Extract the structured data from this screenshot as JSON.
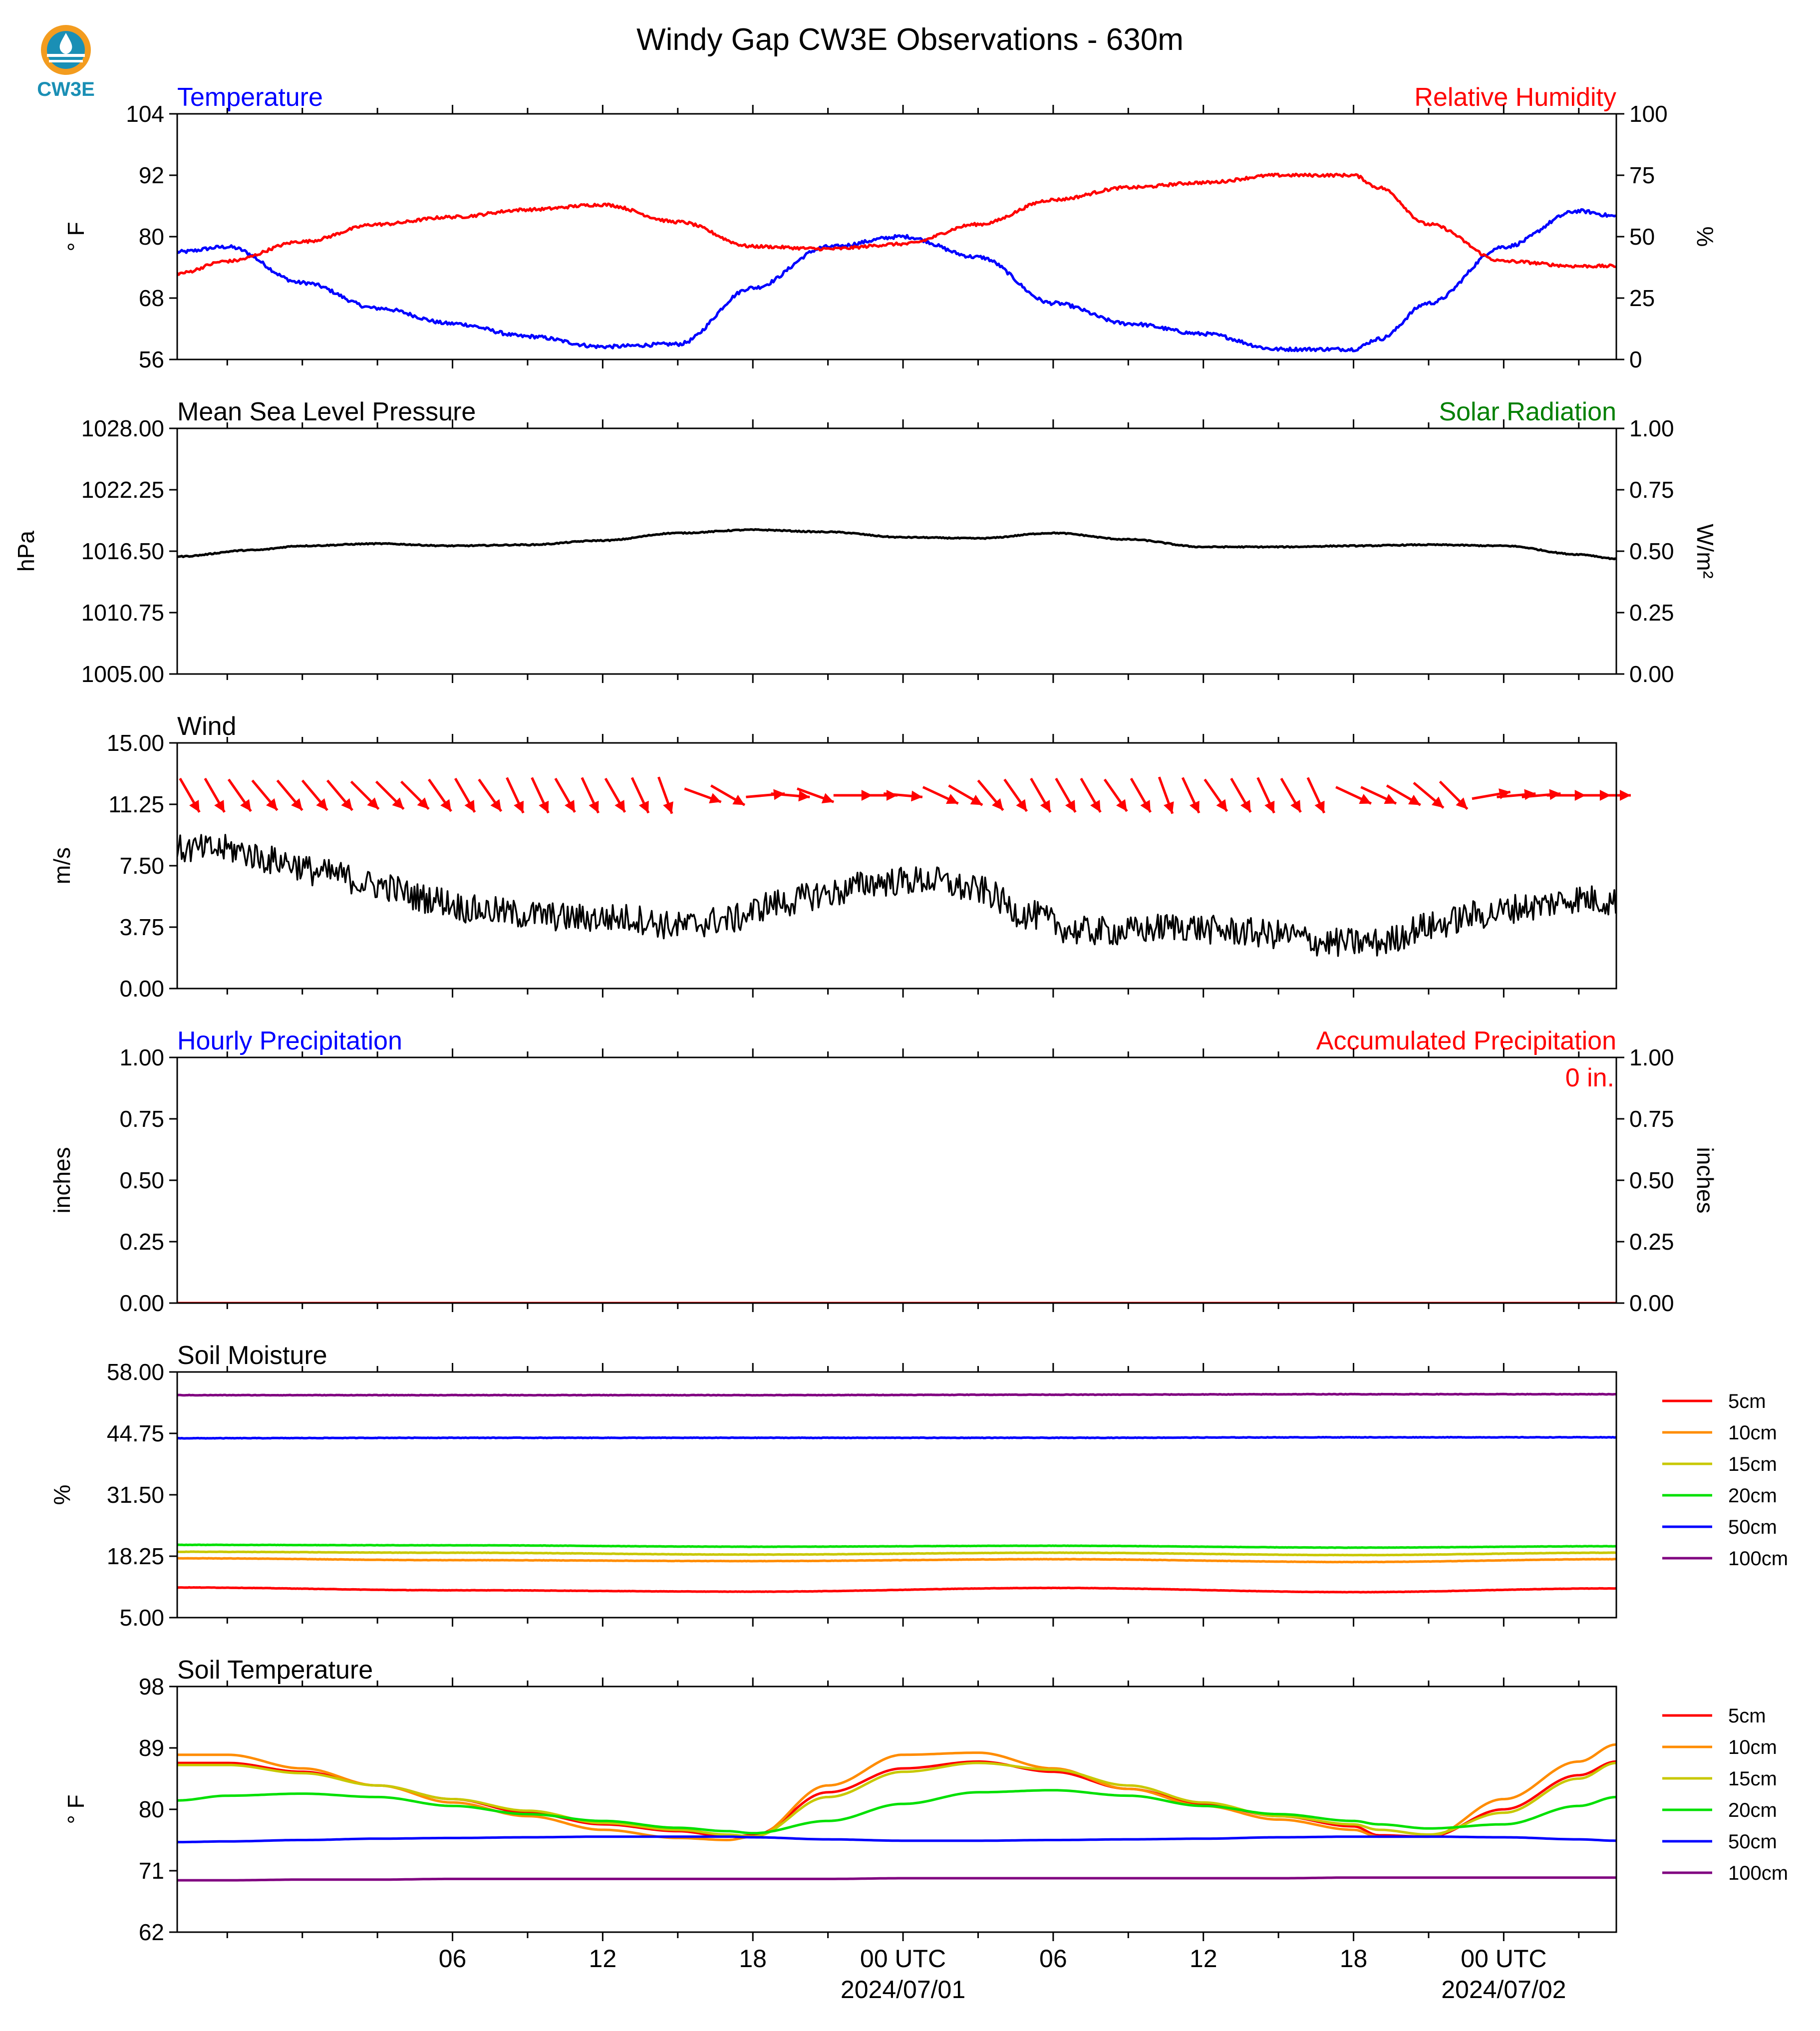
{
  "page": {
    "title": "Windy Gap CW3E Observations - 630m",
    "logo_text": "CW3E",
    "x_tick_labels": [
      "06",
      "12",
      "18",
      "00 UTC",
      "06",
      "12",
      "18",
      "00 UTC"
    ],
    "x_date_labels": [
      "2024/07/01",
      "2024/07/02"
    ],
    "colors": {
      "red": "#ff0000",
      "blue": "#0000ff",
      "green": "#008000",
      "black": "#000000",
      "logo_orange": "#f39c1f",
      "logo_teal": "#1a8fb5"
    }
  },
  "chart_data": [
    {
      "id": "temp_rh",
      "type": "line",
      "title_left": "Temperature",
      "title_right": "Relative Humidity",
      "ylabel_left": "° F",
      "ylabel_right": "%",
      "ylim_left": [
        56,
        104
      ],
      "ylim_right": [
        0,
        100
      ],
      "yticks_left": [
        "104",
        "92",
        "80",
        "68",
        "56"
      ],
      "yticks_right": [
        "100",
        "75",
        "50",
        "25",
        "0"
      ],
      "x_hours": [
        -5,
        -3,
        0,
        3,
        6,
        9,
        12,
        15,
        18,
        21,
        24,
        27,
        30,
        33,
        36,
        39,
        42,
        43,
        45,
        48,
        51,
        52.5
      ],
      "series": [
        {
          "axis": "left",
          "color": "#0000ff",
          "values": [
            77,
            78,
            71,
            66,
            63,
            60.5,
            58.5,
            59,
            70,
            78,
            80,
            76,
            67,
            63,
            61,
            58,
            58,
            60,
            67,
            78,
            85,
            84
          ]
        },
        {
          "axis": "right",
          "color": "#ff0000",
          "values": [
            35,
            40,
            48,
            55,
            58,
            61,
            63,
            56,
            46,
            45,
            47,
            55,
            65,
            70,
            72,
            75,
            75,
            70,
            55,
            40,
            38,
            38
          ]
        }
      ]
    },
    {
      "id": "pressure",
      "type": "line",
      "title_left": "Mean Sea Level Pressure",
      "title_right": "Solar Radiation",
      "ylabel_left": "hPa",
      "ylabel_right": "W/m²",
      "ylim_left": [
        1005.0,
        1028.0
      ],
      "ylim_right": [
        0.0,
        1.0
      ],
      "yticks_left": [
        "1028.00",
        "1022.25",
        "1016.50",
        "1010.75",
        "1005.00"
      ],
      "yticks_right": [
        "1.00",
        "0.75",
        "0.50",
        "0.25",
        "0.00"
      ],
      "x_hours": [
        -5,
        -2,
        0,
        3,
        6,
        9,
        12,
        15,
        18,
        21,
        24,
        27,
        30,
        33,
        36,
        39,
        42,
        45,
        48,
        51,
        52.5
      ],
      "series": [
        {
          "axis": "left",
          "color": "#000000",
          "values": [
            1016.0,
            1016.6,
            1017.0,
            1017.2,
            1017.0,
            1017.1,
            1017.5,
            1018.2,
            1018.5,
            1018.3,
            1017.8,
            1017.7,
            1018.2,
            1017.6,
            1016.9,
            1016.9,
            1017.0,
            1017.1,
            1017.0,
            1016.2,
            1015.8
          ]
        }
      ]
    },
    {
      "id": "wind",
      "type": "line",
      "title_left": "Wind",
      "ylabel_left": "m/s",
      "ylim_left": [
        0.0,
        15.0
      ],
      "yticks_left": [
        "15.00",
        "11.25",
        "7.50",
        "3.75",
        "0.00"
      ],
      "x_hours": [
        -5,
        -3,
        -1,
        1,
        3,
        5,
        7,
        9,
        11,
        13,
        15,
        17,
        19,
        21,
        23,
        25,
        27,
        29,
        31,
        33,
        35,
        37,
        39,
        41,
        43,
        45,
        47,
        49,
        51,
        52.5
      ],
      "series": [
        {
          "axis": "left",
          "color": "#000000",
          "values": [
            8.5,
            8.5,
            7.8,
            7.0,
            6.3,
            5.5,
            4.8,
            4.5,
            4.3,
            4.3,
            3.8,
            4.2,
            5.2,
            5.8,
            6.5,
            6.6,
            6.0,
            4.5,
            3.5,
            3.5,
            3.8,
            3.5,
            3.3,
            2.8,
            2.8,
            3.8,
            4.5,
            5.0,
            5.5,
            5.3
          ]
        }
      ],
      "barbs": {
        "color": "#ff0000",
        "y_value": 11.8,
        "items": [
          {
            "hour": -4.5,
            "dir": 330
          },
          {
            "hour": -3.5,
            "dir": 330
          },
          {
            "hour": -2.5,
            "dir": 325
          },
          {
            "hour": -1.5,
            "dir": 320
          },
          {
            "hour": -0.5,
            "dir": 320
          },
          {
            "hour": 0.5,
            "dir": 320
          },
          {
            "hour": 1.5,
            "dir": 320
          },
          {
            "hour": 2.5,
            "dir": 315
          },
          {
            "hour": 3.5,
            "dir": 315
          },
          {
            "hour": 4.5,
            "dir": 315
          },
          {
            "hour": 5.5,
            "dir": 325
          },
          {
            "hour": 6.5,
            "dir": 330
          },
          {
            "hour": 7.5,
            "dir": 325
          },
          {
            "hour": 8.5,
            "dir": 335
          },
          {
            "hour": 9.5,
            "dir": 335
          },
          {
            "hour": 10.5,
            "dir": 330
          },
          {
            "hour": 11.5,
            "dir": 335
          },
          {
            "hour": 12.5,
            "dir": 330
          },
          {
            "hour": 13.5,
            "dir": 335
          },
          {
            "hour": 14.5,
            "dir": 340
          },
          {
            "hour": 16.0,
            "dir": 290
          },
          {
            "hour": 17.0,
            "dir": 300
          },
          {
            "hour": 18.5,
            "dir": 265
          },
          {
            "hour": 19.5,
            "dir": 275
          },
          {
            "hour": 20.5,
            "dir": 290
          },
          {
            "hour": 22.0,
            "dir": 270
          },
          {
            "hour": 23.0,
            "dir": 270
          },
          {
            "hour": 24.0,
            "dir": 275
          },
          {
            "hour": 25.5,
            "dir": 295
          },
          {
            "hour": 26.5,
            "dir": 300
          },
          {
            "hour": 27.5,
            "dir": 320
          },
          {
            "hour": 28.5,
            "dir": 325
          },
          {
            "hour": 29.5,
            "dir": 330
          },
          {
            "hour": 30.5,
            "dir": 330
          },
          {
            "hour": 31.5,
            "dir": 330
          },
          {
            "hour": 32.5,
            "dir": 325
          },
          {
            "hour": 33.5,
            "dir": 330
          },
          {
            "hour": 34.5,
            "dir": 340
          },
          {
            "hour": 35.5,
            "dir": 335
          },
          {
            "hour": 36.5,
            "dir": 325
          },
          {
            "hour": 37.5,
            "dir": 330
          },
          {
            "hour": 38.5,
            "dir": 335
          },
          {
            "hour": 39.5,
            "dir": 330
          },
          {
            "hour": 40.5,
            "dir": 335
          },
          {
            "hour": 42.0,
            "dir": 295
          },
          {
            "hour": 43.0,
            "dir": 295
          },
          {
            "hour": 44.0,
            "dir": 300
          },
          {
            "hour": 45.0,
            "dir": 310
          },
          {
            "hour": 46.0,
            "dir": 315
          },
          {
            "hour": 47.5,
            "dir": 260
          },
          {
            "hour": 48.5,
            "dir": 265
          },
          {
            "hour": 49.5,
            "dir": 265
          },
          {
            "hour": 50.5,
            "dir": 270
          },
          {
            "hour": 51.5,
            "dir": 270
          },
          {
            "hour": 52.3,
            "dir": 270
          }
        ]
      }
    },
    {
      "id": "precip",
      "type": "line",
      "title_left": "Hourly Precipitation",
      "title_right": "Accumulated Precipitation",
      "annotation": "0 in.",
      "ylabel_left": "inches",
      "ylabel_right": "inches",
      "ylim_left": [
        0.0,
        1.0
      ],
      "ylim_right": [
        0.0,
        1.0
      ],
      "yticks_left": [
        "1.00",
        "0.75",
        "0.50",
        "0.25",
        "0.00"
      ],
      "yticks_right": [
        "1.00",
        "0.75",
        "0.50",
        "0.25",
        "0.00"
      ],
      "x_hours": [
        -5,
        52.5
      ],
      "series": [
        {
          "axis": "left",
          "color": "#0000ff",
          "values": [
            0,
            0
          ]
        },
        {
          "axis": "right",
          "color": "#ff0000",
          "values": [
            0,
            0
          ]
        }
      ]
    },
    {
      "id": "soil_moisture",
      "type": "line",
      "title_left": "Soil Moisture",
      "ylabel_left": "%",
      "ylim_left": [
        5.0,
        58.0
      ],
      "yticks_left": [
        "58.00",
        "44.75",
        "31.50",
        "18.25",
        "5.00"
      ],
      "x_hours": [
        -5,
        6,
        18,
        30,
        42,
        52.5
      ],
      "series": [
        {
          "name": "5cm",
          "axis": "left",
          "color": "#ff0000",
          "values": [
            11.5,
            10.9,
            10.6,
            11.4,
            10.5,
            11.3
          ]
        },
        {
          "name": "10cm",
          "axis": "left",
          "color": "#ff8c00",
          "values": [
            17.8,
            17.4,
            17.2,
            17.6,
            17.0,
            17.6
          ]
        },
        {
          "name": "15cm",
          "axis": "left",
          "color": "#c8c800",
          "values": [
            19.2,
            19.0,
            18.6,
            19.0,
            18.5,
            19.0
          ]
        },
        {
          "name": "20cm",
          "axis": "left",
          "color": "#00e000",
          "values": [
            20.7,
            20.6,
            20.3,
            20.5,
            20.1,
            20.4
          ]
        },
        {
          "name": "50cm",
          "axis": "left",
          "color": "#0000ff",
          "values": [
            43.7,
            43.8,
            43.8,
            43.8,
            43.9,
            43.9
          ]
        },
        {
          "name": "100cm",
          "axis": "left",
          "color": "#800080",
          "values": [
            53.0,
            53.0,
            53.0,
            53.1,
            53.2,
            53.2
          ]
        }
      ]
    },
    {
      "id": "soil_temp",
      "type": "line",
      "title_left": "Soil Temperature",
      "ylabel_left": "° F",
      "ylim_left": [
        62,
        98
      ],
      "yticks_left": [
        "98",
        "89",
        "80",
        "71",
        "62"
      ],
      "x_hours": [
        -5,
        -3,
        0,
        3,
        6,
        9,
        12,
        15,
        17,
        18,
        21,
        24,
        27,
        30,
        33,
        36,
        39,
        42,
        43,
        45,
        48,
        51,
        52.5
      ],
      "series": [
        {
          "name": "5cm",
          "axis": "left",
          "color": "#ff0000",
          "values": [
            86.8,
            86.8,
            85.5,
            83.5,
            81.5,
            79.5,
            77.8,
            76.8,
            76.0,
            76.2,
            82.5,
            86.0,
            87.0,
            85.5,
            83.0,
            80.8,
            79.0,
            77.5,
            76.2,
            76.0,
            80.0,
            85.0,
            87.0
          ]
        },
        {
          "name": "10cm",
          "axis": "left",
          "color": "#ff8c00",
          "values": [
            88.0,
            88.0,
            86.0,
            83.5,
            81.0,
            79.0,
            77.0,
            75.8,
            75.5,
            76.0,
            83.5,
            88.0,
            88.3,
            86.0,
            83.0,
            80.5,
            78.5,
            77.0,
            76.0,
            76.0,
            81.5,
            87.0,
            89.5
          ]
        },
        {
          "name": "15cm",
          "axis": "left",
          "color": "#c8c800",
          "values": [
            86.5,
            86.5,
            85.3,
            83.5,
            81.5,
            79.8,
            78.0,
            77.0,
            76.3,
            76.0,
            81.8,
            85.5,
            86.8,
            85.8,
            83.5,
            81.0,
            79.0,
            77.8,
            77.0,
            76.3,
            79.5,
            84.5,
            86.8
          ]
        },
        {
          "name": "20cm",
          "axis": "left",
          "color": "#00e000",
          "values": [
            81.3,
            82.0,
            82.3,
            81.8,
            80.5,
            79.3,
            78.3,
            77.3,
            76.8,
            76.5,
            78.3,
            80.8,
            82.5,
            82.8,
            82.0,
            80.5,
            79.3,
            78.3,
            77.8,
            77.2,
            77.8,
            80.5,
            81.8
          ]
        },
        {
          "name": "50cm",
          "axis": "left",
          "color": "#0000ff",
          "values": [
            75.2,
            75.3,
            75.5,
            75.7,
            75.8,
            75.9,
            76.0,
            76.0,
            76.0,
            75.9,
            75.6,
            75.4,
            75.4,
            75.5,
            75.6,
            75.7,
            75.9,
            76.0,
            76.0,
            76.0,
            75.9,
            75.6,
            75.4
          ]
        },
        {
          "name": "100cm",
          "axis": "left",
          "color": "#800080",
          "values": [
            69.6,
            69.6,
            69.7,
            69.7,
            69.8,
            69.8,
            69.8,
            69.8,
            69.8,
            69.8,
            69.8,
            69.9,
            69.9,
            69.9,
            69.9,
            69.9,
            69.9,
            70.0,
            70.0,
            70.0,
            70.0,
            70.0,
            70.0
          ]
        }
      ]
    }
  ]
}
